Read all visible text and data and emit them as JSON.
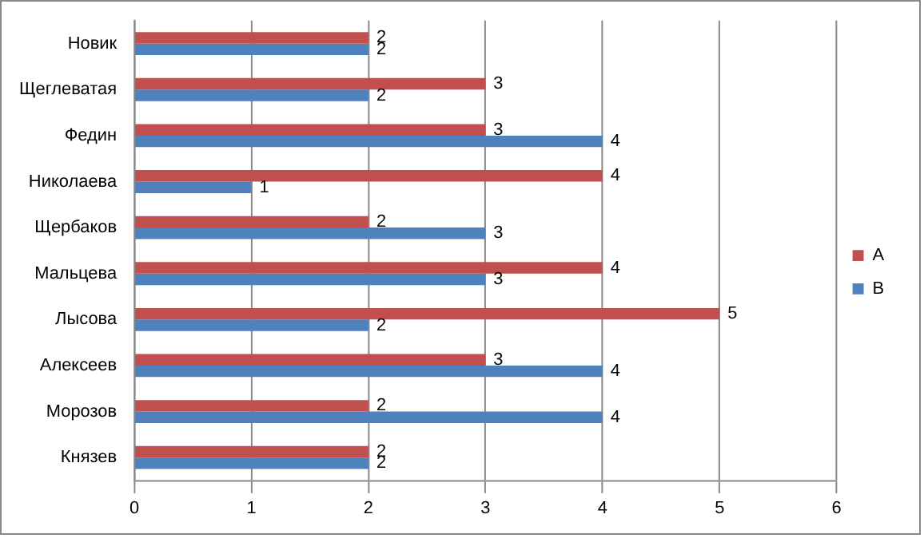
{
  "chart_data": {
    "type": "bar",
    "orientation": "horizontal",
    "categories": [
      "Новик",
      "Щеглеватая",
      "Федин",
      "Николаева",
      "Щербаков",
      "Мальцева",
      "Лысова",
      "Алексеев",
      "Морозов",
      "Князев"
    ],
    "series": [
      {
        "name": "A",
        "color": "#c0504d",
        "values": [
          2,
          3,
          3,
          4,
          2,
          4,
          5,
          3,
          2,
          2
        ]
      },
      {
        "name": "B",
        "color": "#4f81bd",
        "values": [
          2,
          2,
          4,
          1,
          3,
          3,
          2,
          4,
          4,
          2
        ]
      }
    ],
    "xlim": [
      0,
      6
    ],
    "xticks": [
      0,
      1,
      2,
      3,
      4,
      5,
      6
    ],
    "grid": "x",
    "legend": "right",
    "data_labels": true
  }
}
